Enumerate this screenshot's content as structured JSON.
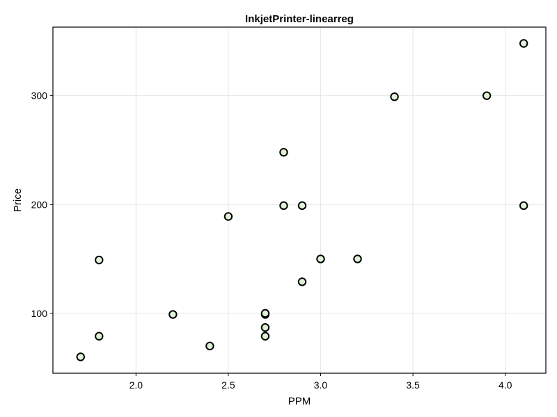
{
  "chart_data": {
    "type": "scatter",
    "title": "InkjetPrinter-linearreg",
    "xlabel": "PPM",
    "ylabel": "Price",
    "xlim": [
      1.55,
      4.22
    ],
    "ylim": [
      45,
      363
    ],
    "xticks": [
      2.0,
      2.5,
      3.0,
      3.5,
      4.0
    ],
    "xtick_labels": [
      "2.0",
      "2.5",
      "3.0",
      "3.5",
      "4.0"
    ],
    "yticks": [
      100,
      200,
      300
    ],
    "ytick_labels": [
      "100",
      "200",
      "300"
    ],
    "grid": true,
    "marker_fill": "#dff2d8",
    "marker_stroke": "#000000",
    "points": [
      {
        "x": 1.7,
        "y": 60
      },
      {
        "x": 1.8,
        "y": 79
      },
      {
        "x": 1.8,
        "y": 149
      },
      {
        "x": 2.2,
        "y": 99
      },
      {
        "x": 2.4,
        "y": 70
      },
      {
        "x": 2.5,
        "y": 189
      },
      {
        "x": 2.7,
        "y": 79
      },
      {
        "x": 2.7,
        "y": 87
      },
      {
        "x": 2.7,
        "y": 99
      },
      {
        "x": 2.7,
        "y": 100
      },
      {
        "x": 2.8,
        "y": 199
      },
      {
        "x": 2.8,
        "y": 248
      },
      {
        "x": 2.9,
        "y": 129
      },
      {
        "x": 2.9,
        "y": 199
      },
      {
        "x": 3.0,
        "y": 150
      },
      {
        "x": 3.2,
        "y": 150
      },
      {
        "x": 3.4,
        "y": 299
      },
      {
        "x": 3.9,
        "y": 300
      },
      {
        "x": 4.1,
        "y": 199
      },
      {
        "x": 4.1,
        "y": 348
      }
    ]
  }
}
